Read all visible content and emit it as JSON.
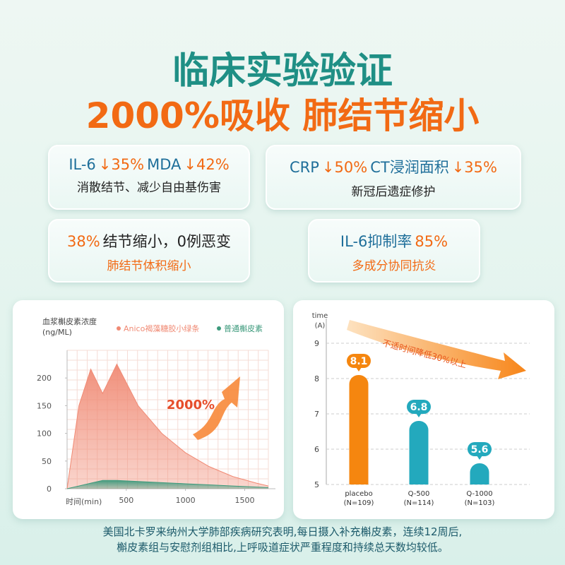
{
  "header": {
    "title": "临床实验验证",
    "subtitle": "2000%吸收 肺结节缩小"
  },
  "cards": [
    {
      "lines": [
        [
          {
            "text": "IL-6",
            "color": "#1f6f9a"
          },
          {
            "text": "↓35%",
            "color": "#f26a14"
          },
          {
            "text": "MDA",
            "color": "#1f6f9a"
          },
          {
            "text": "↓42%",
            "color": "#f26a14"
          }
        ],
        [
          {
            "text": "消散结节、减少自由基伤害",
            "color": "#222222"
          }
        ]
      ]
    },
    {
      "lines": [
        [
          {
            "text": "CRP",
            "color": "#1f6f9a"
          },
          {
            "text": "↓50%",
            "color": "#f26a14"
          },
          {
            "text": "CT浸润面积",
            "color": "#1f6f9a"
          },
          {
            "text": "↓35%",
            "color": "#f26a14"
          }
        ],
        [
          {
            "text": "新冠后遗症修护",
            "color": "#222222"
          }
        ]
      ]
    },
    {
      "lines": [
        [
          {
            "text": "38%",
            "color": "#f26a14"
          },
          {
            "text": "结节缩小，0例恶变",
            "color": "#222222"
          }
        ],
        [
          {
            "text": "肺结节体积缩小",
            "color": "#f26a14"
          }
        ]
      ]
    },
    {
      "lines": [
        [
          {
            "text": "IL-6抑制率",
            "color": "#1f6f9a"
          },
          {
            "text": "85%",
            "color": "#f26a14"
          }
        ],
        [
          {
            "text": "多成分协同抗炎",
            "color": "#f26a14"
          }
        ]
      ]
    }
  ],
  "chart_data": [
    {
      "type": "area",
      "y_label": [
        "血浆槲皮素浓度",
        "(ng/ML)"
      ],
      "x_label": "时间(min)",
      "annotation": "2000%",
      "x": [
        0,
        100,
        200,
        300,
        420,
        600,
        800,
        1000,
        1200,
        1400,
        1600,
        1700
      ],
      "series": [
        {
          "name": "Anico褐藻糖胶小绿条",
          "color": "#f08a74",
          "values": [
            0,
            150,
            216,
            172,
            225,
            150,
            100,
            65,
            40,
            22,
            10,
            5
          ]
        },
        {
          "name": "普通槲皮素",
          "color": "#3d9a7c",
          "values": [
            0,
            5,
            10,
            15,
            15,
            13,
            11,
            9,
            7,
            5,
            3,
            2
          ]
        }
      ],
      "xlim": [
        0,
        1700
      ],
      "xticks": [
        500,
        1000,
        1500
      ],
      "ylim": [
        0,
        250
      ],
      "yticks": [
        0,
        50,
        100,
        150,
        200
      ],
      "grid": true
    },
    {
      "type": "bar",
      "y_label": [
        "time",
        "(A)"
      ],
      "annotation": "不适时间降低30%以上",
      "categories": [
        "placebo",
        "Q-500",
        "Q-1000"
      ],
      "category_notes": [
        "(N=109)",
        "(N=114)",
        "(N=103)"
      ],
      "values": [
        8.1,
        6.8,
        5.6
      ],
      "colors": [
        "#f5860f",
        "#23a9bd",
        "#23a9bd"
      ],
      "ylim": [
        5,
        9.5
      ],
      "yticks": [
        5,
        6,
        7,
        8,
        9
      ],
      "grid": true
    }
  ],
  "footnote": [
    "美国北卡罗来纳州大学肺部疾病研究表明,每日摄入补充槲皮素，连续12周后,",
    "槲皮素组与安慰剂组相比,上呼吸道症状严重程度和持续总天数均较低。"
  ]
}
